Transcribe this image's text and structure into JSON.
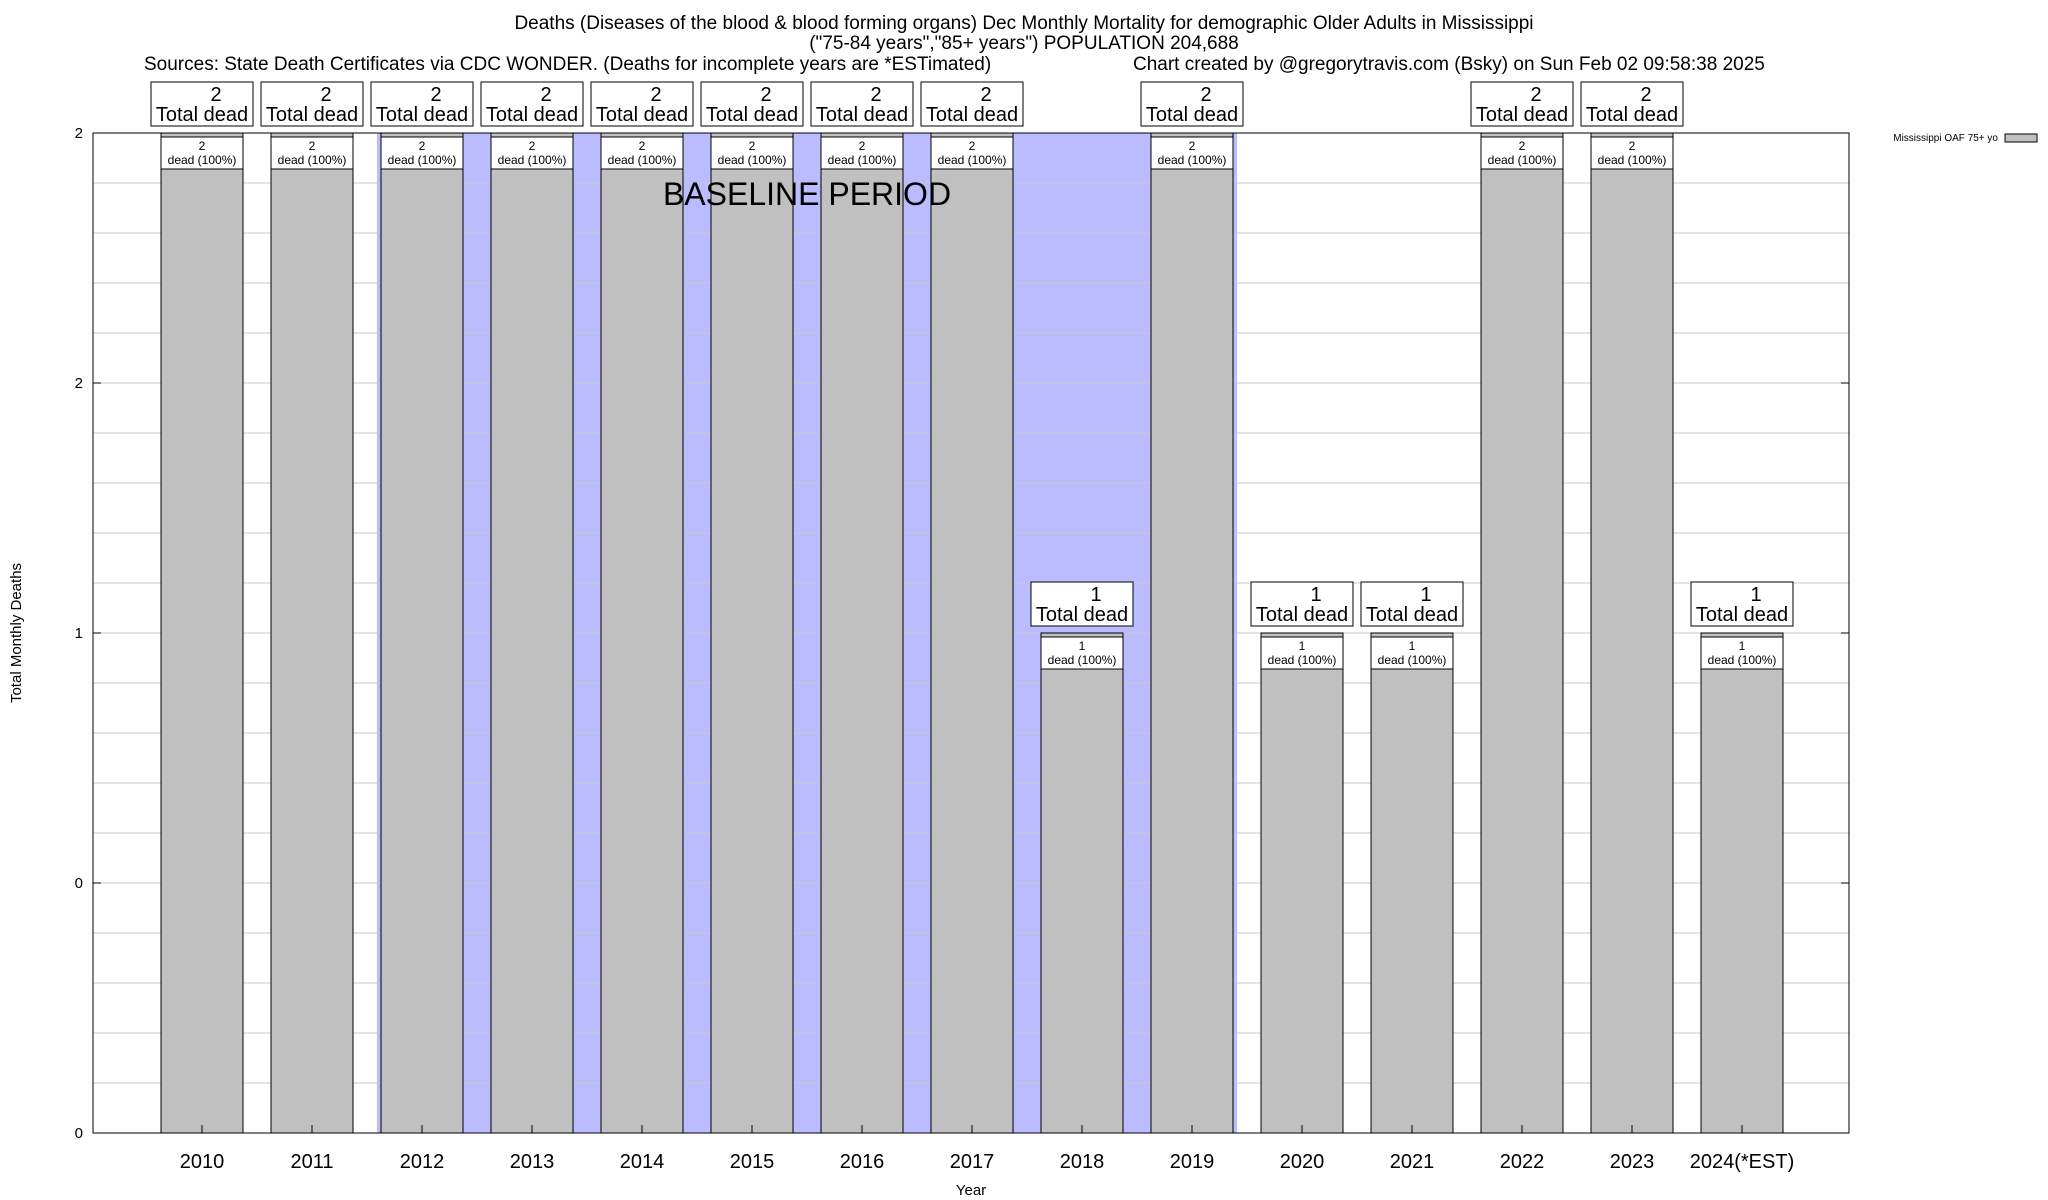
{
  "chart_data": {
    "type": "bar",
    "title": "Deaths (Diseases of the blood & blood forming organs) Dec Monthly Mortality for demographic Older Adults in Mississippi",
    "subtitle": "(\"75-84 years\",\"85+ years\") POPULATION 204,688",
    "sources": "Sources: State Death Certificates via CDC WONDER. (Deaths for incomplete years are *ESTimated)",
    "credit": "Chart created by @gregorytravis.com (Bsky) on Sun Feb 02 09:58:38 2025",
    "xlabel": "Year",
    "ylabel": "Total Monthly Deaths",
    "ylim": [
      0,
      2
    ],
    "y_tick_labels": [
      "0",
      "0",
      "1",
      "2",
      "2"
    ],
    "grid": true,
    "legend_position": "top-right",
    "baseline_label": "BASELINE PERIOD",
    "baseline_range": [
      "2012",
      "2019"
    ],
    "categories": [
      "2010",
      "2011",
      "2012",
      "2013",
      "2014",
      "2015",
      "2016",
      "2017",
      "2018",
      "2019",
      "2020",
      "2021",
      "2022",
      "2023",
      "2024(*EST)"
    ],
    "series": [
      {
        "name": "Mississippi OAF 75+ yo",
        "values": [
          2,
          2,
          2,
          2,
          2,
          2,
          2,
          2,
          1,
          2,
          1,
          1,
          2,
          2,
          1
        ],
        "total_labels": [
          "2",
          "2",
          "2",
          "2",
          "2",
          "2",
          "2",
          "2",
          "1",
          "2",
          "1",
          "1",
          "2",
          "2",
          "1"
        ],
        "total_suffix": "Total dead",
        "inner_suffix": "dead (100%)",
        "show_total": [
          true,
          true,
          true,
          true,
          true,
          true,
          true,
          true,
          true,
          true,
          true,
          true,
          true,
          true,
          true
        ]
      }
    ],
    "colors": {
      "bar": "#c0c0c0",
      "baseline": "#bbbbff",
      "grid": "#c8c8c8"
    }
  }
}
